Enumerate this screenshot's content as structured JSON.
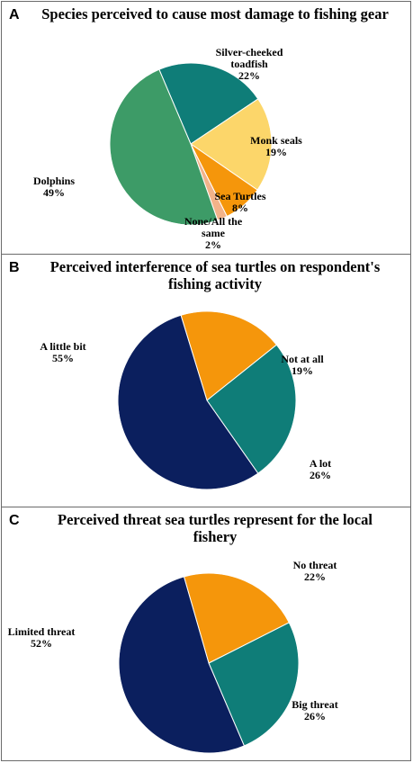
{
  "chart_data": [
    {
      "type": "pie",
      "panel_letter": "A",
      "title": "Species perceived to cause most damage to fishing gear",
      "slices": [
        {
          "label": "Silver-cheeked toadfish",
          "label_lines": [
            "Silver-cheeked",
            "toadfish"
          ],
          "value": 22,
          "value_label": "22%",
          "color": "#0f7d78"
        },
        {
          "label": "Monk seals",
          "label_lines": [
            "Monk seals"
          ],
          "value": 19,
          "value_label": "19%",
          "color": "#fcd66a"
        },
        {
          "label": "Sea Turtles",
          "label_lines": [
            "Sea Turtles"
          ],
          "value": 8,
          "value_label": "8%",
          "color": "#f5960b"
        },
        {
          "label": "None/All the same",
          "label_lines": [
            "None/All the",
            "same"
          ],
          "value": 2,
          "value_label": "2%",
          "color": "#f2b38a"
        },
        {
          "label": "Dolphins",
          "label_lines": [
            "Dolphins"
          ],
          "value": 49,
          "value_label": "49%",
          "color": "#3d9b67"
        }
      ]
    },
    {
      "type": "pie",
      "panel_letter": "B",
      "title": "Perceived interference of sea turtles on respondent's fishing activity",
      "slices": [
        {
          "label": "Not at all",
          "label_lines": [
            "Not at all"
          ],
          "value": 19,
          "value_label": "19%",
          "color": "#f5960b"
        },
        {
          "label": "A lot",
          "label_lines": [
            "A lot"
          ],
          "value": 26,
          "value_label": "26%",
          "color": "#0f7d78"
        },
        {
          "label": "A little bit",
          "label_lines": [
            "A little bit"
          ],
          "value": 55,
          "value_label": "55%",
          "color": "#0b1f5e"
        }
      ]
    },
    {
      "type": "pie",
      "panel_letter": "C",
      "title": "Perceived threat sea turtles represent for the local fishery",
      "slices": [
        {
          "label": "No threat",
          "label_lines": [
            "No threat"
          ],
          "value": 22,
          "value_label": "22%",
          "color": "#f5960b"
        },
        {
          "label": "Big threat",
          "label_lines": [
            "Big threat"
          ],
          "value": 26,
          "value_label": "26%",
          "color": "#0f7d78"
        },
        {
          "label": "Limited threat",
          "label_lines": [
            "Limited threat"
          ],
          "value": 52,
          "value_label": "52%",
          "color": "#0b1f5e"
        }
      ]
    }
  ]
}
